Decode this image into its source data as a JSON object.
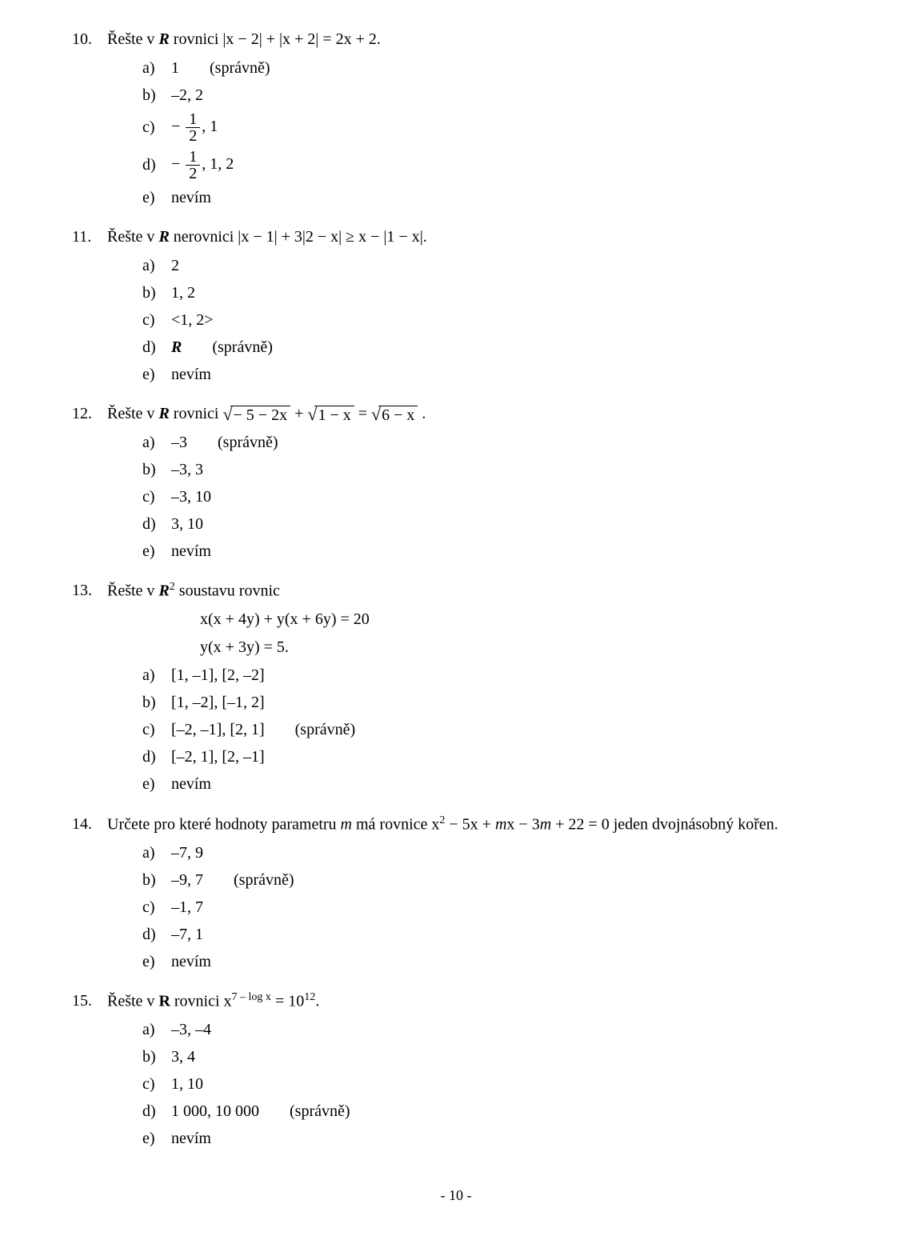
{
  "correct_label": "(správně)",
  "page_number": "- 10 -",
  "q10": {
    "num": "10.",
    "text_pre": "Řešte v ",
    "text_R": "R",
    "text_post": " rovnici  |x − 2| + |x + 2| = 2x + 2.",
    "a": "1",
    "b": "–2, 2",
    "c_pre": "− ",
    "c_num": "1",
    "c_den": "2",
    "c_post": ", 1",
    "d_pre": "− ",
    "d_num": "1",
    "d_den": "2",
    "d_post": ", 1, 2",
    "e": "nevím"
  },
  "q11": {
    "num": "11.",
    "text_pre": "Řešte v ",
    "text_R": "R",
    "text_post": " nerovnici  |x − 1| + 3|2 − x|  ≥  x − |1 − x|.",
    "a": "2",
    "b": "1, 2",
    "c": "<1, 2>",
    "d": "R",
    "e": "nevím"
  },
  "q12": {
    "num": "12.",
    "text_pre": "Řešte v ",
    "text_R": "R",
    "text_mid": " rovnici  ",
    "s1": "− 5 − 2x",
    "plus": " + ",
    "s2": "1 − x",
    "eq": " = ",
    "s3": "6 − x",
    "dot": " .",
    "a": "–3",
    "b": "–3, 3",
    "c": "–3, 10",
    "d": "3, 10",
    "e": "nevím"
  },
  "q13": {
    "num": "13.",
    "text_pre": "Řešte v ",
    "text_R2": "R",
    "text_sup": "2",
    "text_post": " soustavu rovnic",
    "eq1": "x(x + 4y) + y(x + 6y) = 20",
    "eq2": "y(x + 3y) = 5.",
    "a": "[1, –1], [2, –2]",
    "b": "[1, –2], [–1, 2]",
    "c": "[–2, –1], [2, 1]",
    "d": "[–2, 1], [2, –1]",
    "e": "nevím"
  },
  "q14": {
    "num": "14.",
    "text_a": "Určete pro které hodnoty parametru ",
    "m1": "m",
    "text_b": " má rovnice  x",
    "sup2": "2",
    "text_c": " − 5x + ",
    "m2": "m",
    "text_d": "x − 3",
    "m3": "m",
    "text_e": " + 22 = 0  jeden dvojnásobný kořen.",
    "a": "–7, 9",
    "b": "–9, 7",
    "c": "–1, 7",
    "d": "–7, 1",
    "e": "nevím"
  },
  "q15": {
    "num": "15.",
    "text_pre": "Řešte v ",
    "text_R": "R",
    "text_mid": " rovnici  x",
    "exp": "7 – log x",
    "eq": " = 10",
    "exp2": "12",
    "dot": ".",
    "a": "–3, –4",
    "b": "3, 4",
    "c": "1, 10",
    "d": "1 000, 10 000",
    "e": "nevím"
  },
  "letters": {
    "a": "a)",
    "b": "b)",
    "c": "c)",
    "d": "d)",
    "e": "e)"
  }
}
